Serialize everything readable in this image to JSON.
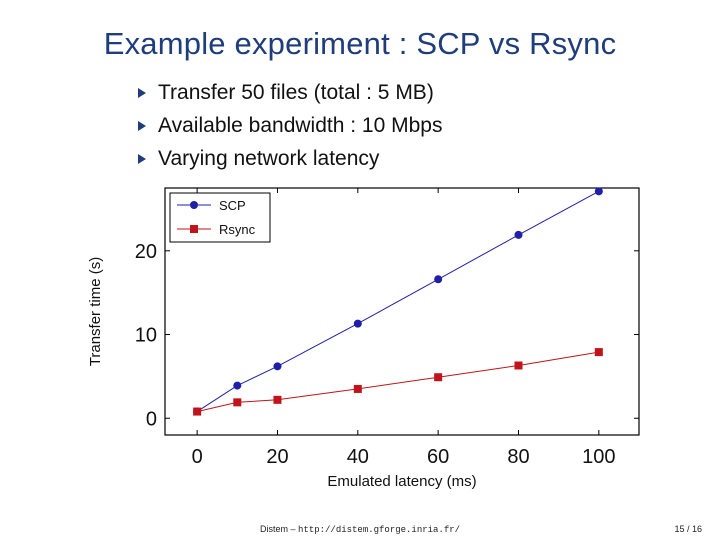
{
  "slide": {
    "title": "Example experiment : SCP vs Rsync",
    "bullets": [
      "Transfer 50 files (total : 5 MB)",
      "Available bandwidth : 10 Mbps",
      "Varying network latency"
    ]
  },
  "footer": {
    "author": "Distem",
    "separator": "–",
    "url": "http://distem.gforge.inria.fr/",
    "page": "15 / 16"
  },
  "colors": {
    "title": "#1f3d7a",
    "scp": "#1f1fa8",
    "rsync": "#c0141a"
  },
  "chart_data": {
    "type": "line",
    "xlabel": "Emulated latency (ms)",
    "ylabel": "Transfer time (s)",
    "xlim": [
      -8,
      110
    ],
    "ylim": [
      -2,
      27.5
    ],
    "xticks": [
      0,
      20,
      40,
      60,
      80,
      100
    ],
    "yticks": [
      0,
      10,
      20
    ],
    "grid": false,
    "legend": "top-left",
    "series": [
      {
        "name": "SCP",
        "marker": "circle",
        "color": "#1f1fa8",
        "x": [
          0,
          10,
          20,
          40,
          60,
          80,
          100
        ],
        "y": [
          0.8,
          3.9,
          6.2,
          11.3,
          16.6,
          21.9,
          27.1
        ]
      },
      {
        "name": "Rsync",
        "marker": "square",
        "color": "#c0141a",
        "x": [
          0,
          10,
          20,
          40,
          60,
          80,
          100
        ],
        "y": [
          0.8,
          1.9,
          2.2,
          3.5,
          4.9,
          6.3,
          7.9
        ]
      }
    ]
  }
}
